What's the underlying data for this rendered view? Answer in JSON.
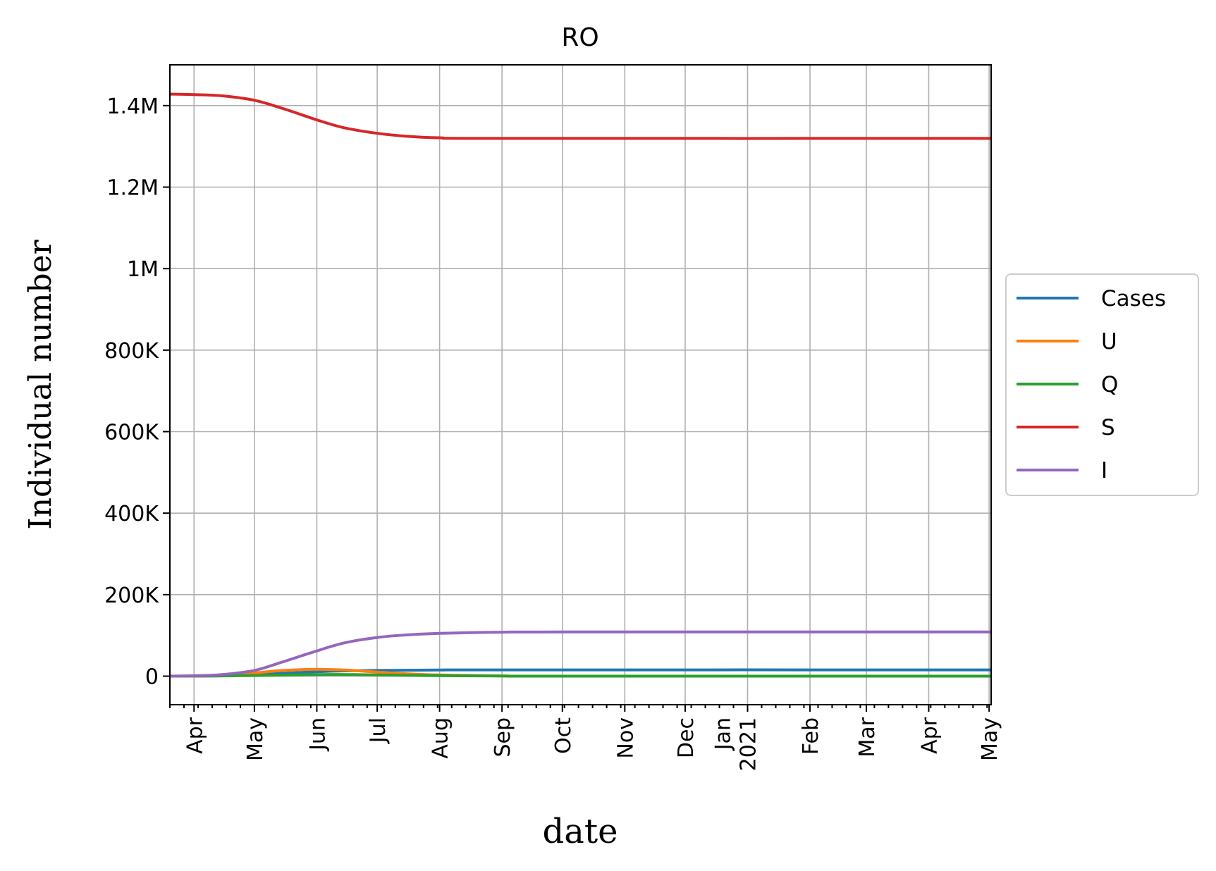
{
  "chart_data": {
    "type": "line",
    "title": "RO",
    "xlabel": "date",
    "ylabel": "Individual number",
    "x_range": [
      "2020-03-20",
      "2021-05-02"
    ],
    "ylim": [
      -70000,
      1500000
    ],
    "grid": true,
    "legend_position": "center-right outside",
    "y_ticks": [
      {
        "value": 0,
        "label": "0"
      },
      {
        "value": 200000,
        "label": "200K"
      },
      {
        "value": 400000,
        "label": "400K"
      },
      {
        "value": 600000,
        "label": "600K"
      },
      {
        "value": 800000,
        "label": "800K"
      },
      {
        "value": 1000000,
        "label": "1M"
      },
      {
        "value": 1200000,
        "label": "1.2M"
      },
      {
        "value": 1400000,
        "label": "1.4M"
      }
    ],
    "x_ticks": [
      {
        "date": "2020-04-01",
        "label": "Apr"
      },
      {
        "date": "2020-05-01",
        "label": "May"
      },
      {
        "date": "2020-06-01",
        "label": "Jun"
      },
      {
        "date": "2020-07-01",
        "label": "Jul"
      },
      {
        "date": "2020-08-01",
        "label": "Aug"
      },
      {
        "date": "2020-09-01",
        "label": "Sep"
      },
      {
        "date": "2020-10-01",
        "label": "Oct"
      },
      {
        "date": "2020-11-01",
        "label": "Nov"
      },
      {
        "date": "2020-12-01",
        "label": "Dec"
      },
      {
        "date": "2021-01-01",
        "label": "Jan\n2021"
      },
      {
        "date": "2021-02-01",
        "label": "Feb"
      },
      {
        "date": "2021-03-01",
        "label": "Mar"
      },
      {
        "date": "2021-04-01",
        "label": "Apr"
      },
      {
        "date": "2021-05-01",
        "label": "May"
      }
    ],
    "series": [
      {
        "name": "Cases",
        "color": "#1f77b4",
        "points": [
          [
            "2020-03-20",
            0
          ],
          [
            "2020-04-10",
            300
          ],
          [
            "2020-05-01",
            3000
          ],
          [
            "2020-05-15",
            7000
          ],
          [
            "2020-06-01",
            11000
          ],
          [
            "2020-06-15",
            13000
          ],
          [
            "2020-07-01",
            14000
          ],
          [
            "2020-08-01",
            15000
          ],
          [
            "2020-09-01",
            15500
          ],
          [
            "2021-05-02",
            15500
          ]
        ]
      },
      {
        "name": "U",
        "color": "#ff7f0e",
        "points": [
          [
            "2020-03-20",
            0
          ],
          [
            "2020-04-10",
            1000
          ],
          [
            "2020-05-01",
            8000
          ],
          [
            "2020-05-15",
            14000
          ],
          [
            "2020-06-01",
            17000
          ],
          [
            "2020-06-15",
            15000
          ],
          [
            "2020-07-01",
            10000
          ],
          [
            "2020-07-15",
            6000
          ],
          [
            "2020-08-01",
            3000
          ],
          [
            "2020-09-01",
            500
          ],
          [
            "2020-10-01",
            0
          ],
          [
            "2021-05-02",
            0
          ]
        ]
      },
      {
        "name": "Q",
        "color": "#2ca02c",
        "points": [
          [
            "2020-03-20",
            0
          ],
          [
            "2020-05-01",
            1500
          ],
          [
            "2020-06-01",
            4000
          ],
          [
            "2020-06-15",
            4000
          ],
          [
            "2020-07-01",
            3000
          ],
          [
            "2020-08-01",
            1200
          ],
          [
            "2020-09-01",
            300
          ],
          [
            "2020-10-01",
            0
          ],
          [
            "2021-05-02",
            0
          ]
        ]
      },
      {
        "name": "S",
        "color": "#d62728",
        "points": [
          [
            "2020-03-20",
            1428000
          ],
          [
            "2020-04-01",
            1427000
          ],
          [
            "2020-04-15",
            1424000
          ],
          [
            "2020-05-01",
            1413000
          ],
          [
            "2020-05-15",
            1393000
          ],
          [
            "2020-06-01",
            1365000
          ],
          [
            "2020-06-15",
            1345000
          ],
          [
            "2020-07-01",
            1332000
          ],
          [
            "2020-07-15",
            1325000
          ],
          [
            "2020-08-01",
            1321000
          ],
          [
            "2020-09-01",
            1319500
          ],
          [
            "2021-05-02",
            1319500
          ]
        ]
      },
      {
        "name": "I",
        "color": "#9467bd",
        "points": [
          [
            "2020-03-20",
            0
          ],
          [
            "2020-04-01",
            1000
          ],
          [
            "2020-04-15",
            4000
          ],
          [
            "2020-05-01",
            14000
          ],
          [
            "2020-05-15",
            35000
          ],
          [
            "2020-06-01",
            62000
          ],
          [
            "2020-06-15",
            82000
          ],
          [
            "2020-07-01",
            95000
          ],
          [
            "2020-07-15",
            101000
          ],
          [
            "2020-08-01",
            105000
          ],
          [
            "2020-09-01",
            108000
          ],
          [
            "2020-10-01",
            108500
          ],
          [
            "2021-05-02",
            108500
          ]
        ]
      }
    ]
  }
}
